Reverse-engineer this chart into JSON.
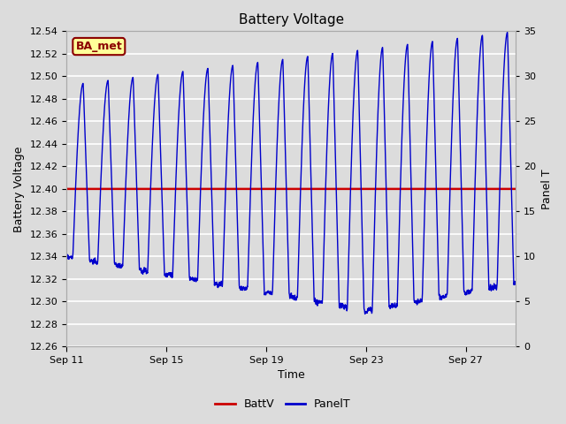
{
  "title": "Battery Voltage",
  "xlabel": "Time",
  "ylabel_left": "Battery Voltage",
  "ylabel_right": "Panel T",
  "legend_label": "BA_met",
  "bg_color": "#dcdcdc",
  "plot_bg_color": "#dcdcdc",
  "grid_color": "#ffffff",
  "ylim_left": [
    12.26,
    12.54
  ],
  "ylim_right": [
    0,
    35
  ],
  "yticks_left": [
    12.26,
    12.28,
    12.3,
    12.32,
    12.34,
    12.36,
    12.38,
    12.4,
    12.42,
    12.44,
    12.46,
    12.48,
    12.5,
    12.52,
    12.54
  ],
  "yticks_right": [
    0,
    5,
    10,
    15,
    20,
    25,
    30,
    35
  ],
  "xtick_labels": [
    "Sep 11",
    "Sep 15",
    "Sep 19",
    "Sep 23",
    "Sep 27"
  ],
  "xtick_days": [
    0,
    4,
    8,
    12,
    16
  ],
  "n_days": 18,
  "battv_value": 12.4,
  "line_color_battv": "#cc0000",
  "line_color_panelt": "#0000cc",
  "v_min": 12.26,
  "v_max": 12.54,
  "pt_min": 0,
  "pt_max": 35
}
